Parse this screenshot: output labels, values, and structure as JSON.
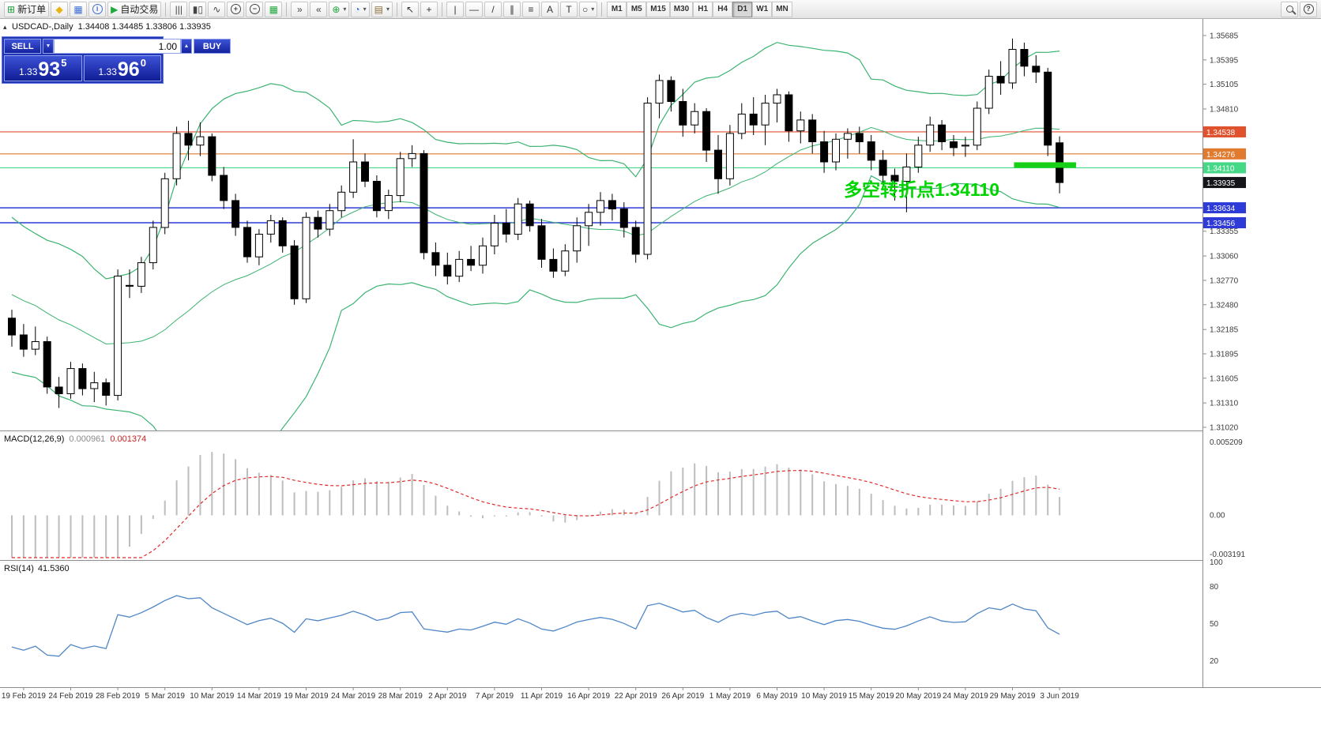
{
  "toolbar": {
    "items": [
      {
        "kind": "labeled-button",
        "name": "new-order",
        "glyph": "⊞",
        "glyph_color": "#1f9d3a",
        "label": "新订单"
      },
      {
        "kind": "glyph",
        "name": "symbols",
        "glyph": "◆",
        "color": "#e7b416"
      },
      {
        "kind": "glyph",
        "name": "market-watch",
        "glyph": "▦",
        "color": "#3f6fd1"
      },
      {
        "kind": "circle",
        "name": "info",
        "text": "i",
        "color": "#3f6fd1"
      },
      {
        "kind": "labeled-button",
        "name": "auto-trading",
        "glyph": "▶",
        "glyph_color": "#1fa83c",
        "label": "自动交易"
      },
      {
        "kind": "sep"
      },
      {
        "kind": "glyph",
        "name": "bar-chart",
        "glyph": "|||",
        "color": "#444444"
      },
      {
        "kind": "glyph",
        "name": "candlestick-chart",
        "glyph": "▮▯",
        "color": "#444444"
      },
      {
        "kind": "glyph",
        "name": "line-chart",
        "glyph": "∿",
        "color": "#444444"
      },
      {
        "kind": "circle",
        "name": "zoom-in",
        "text": "+",
        "color": "#444444"
      },
      {
        "kind": "circle",
        "name": "zoom-out",
        "text": "−",
        "color": "#444444"
      },
      {
        "kind": "glyph",
        "name": "tile-windows",
        "glyph": "▦",
        "color": "#1fa83c"
      },
      {
        "kind": "sep"
      },
      {
        "kind": "glyph",
        "name": "auto-scroll",
        "glyph": "»",
        "color": "#444444"
      },
      {
        "kind": "glyph",
        "name": "chart-shift",
        "glyph": "«",
        "color": "#444444"
      },
      {
        "kind": "dropdown",
        "name": "indicators",
        "glyph": "⊕",
        "color": "#1fa83c"
      },
      {
        "kind": "dropdown",
        "name": "periods",
        "glyph": "◔",
        "color": "#3f6fd1"
      },
      {
        "kind": "dropdown",
        "name": "templates",
        "glyph": "▤",
        "color": "#8a6d3b"
      },
      {
        "kind": "sep"
      },
      {
        "kind": "glyph",
        "name": "cursor",
        "glyph": "↖",
        "color": "#333333"
      },
      {
        "kind": "glyph",
        "name": "crosshair",
        "glyph": "+",
        "color": "#333333"
      },
      {
        "kind": "sep"
      },
      {
        "kind": "glyph",
        "name": "vertical-line",
        "glyph": "|",
        "color": "#333333"
      },
      {
        "kind": "glyph",
        "name": "horizontal-line",
        "glyph": "—",
        "color": "#333333"
      },
      {
        "kind": "glyph",
        "name": "trendline",
        "glyph": "/",
        "color": "#333333"
      },
      {
        "kind": "glyph",
        "name": "equidistant-channel",
        "glyph": "∥",
        "color": "#333333"
      },
      {
        "kind": "glyph",
        "name": "fibonacci",
        "glyph": "≡",
        "color": "#333333"
      },
      {
        "kind": "glyph",
        "name": "text",
        "glyph": "A",
        "color": "#333333"
      },
      {
        "kind": "glyph",
        "name": "text-label",
        "glyph": "T",
        "color": "#333333"
      },
      {
        "kind": "dropdown",
        "name": "shapes",
        "glyph": "○",
        "color": "#333333"
      },
      {
        "kind": "sep"
      },
      {
        "kind": "timeframes"
      }
    ],
    "right_items": [
      {
        "kind": "mag",
        "name": "search"
      },
      {
        "kind": "circle",
        "name": "help",
        "text": "?",
        "color": "#444444"
      }
    ],
    "timeframes": [
      "M1",
      "M5",
      "M15",
      "M30",
      "H1",
      "H4",
      "D1",
      "W1",
      "MN"
    ],
    "active_timeframe": "D1",
    "dropdown_caret": "▾"
  },
  "order_panel": {
    "sell_label": "SELL",
    "buy_label": "BUY",
    "volume": "1.00",
    "spin_up": "▲",
    "spin_down": "▼",
    "sell_price_small": "1.33",
    "sell_price_big": "93",
    "sell_price_sup": "5",
    "buy_price_small": "1.33",
    "buy_price_big": "96",
    "buy_price_sup": "0"
  },
  "chart": {
    "window_marker": "▴",
    "title": "USDCAD-,Daily",
    "ohlc_text": "1.34408 1.34485 1.33806 1.33935",
    "annotation": {
      "text": "多空转折点1.34110",
      "color": "#00d400"
    },
    "hlines": [
      {
        "price": 1.34538,
        "color": "#e0512d",
        "label": "1.34538"
      },
      {
        "price": 1.34276,
        "color": "#e07a2e",
        "label": "1.34276"
      },
      {
        "price": 1.3411,
        "color": "#45d887",
        "label": "1.34110"
      },
      {
        "price": 1.33634,
        "color": "#2e3bd7",
        "label": "1.33634"
      },
      {
        "price": 1.33456,
        "color": "#2e3bd7",
        "label": "1.33456"
      }
    ],
    "current_price": {
      "value": 1.33935,
      "label": "1.33935",
      "bg": "#15161a"
    },
    "highlight_bar": {
      "price": 1.3411,
      "from_index": 85.4,
      "to_index": 90.4,
      "color": "#17cf17"
    },
    "y_axis": {
      "min": 1.3102,
      "max": 1.35685,
      "labels": [
        "1.35685",
        "1.35395",
        "1.35105",
        "1.34810",
        "1.33355",
        "1.33060",
        "1.32770",
        "1.32480",
        "1.32185",
        "1.31895",
        "1.31605",
        "1.31310",
        "1.31020"
      ]
    }
  },
  "chart_data": {
    "type": "candlestick-ohlc",
    "symbol": "USDCAD",
    "timeframe": "Daily",
    "title": "USDCAD-,Daily 1.34408 1.34485 1.33806 1.33935",
    "ylim": [
      1.3102,
      1.35685
    ],
    "grid": false,
    "x_labels": [
      "19 Feb 2019",
      "24 Feb 2019",
      "28 Feb 2019",
      "5 Mar 2019",
      "10 Mar 2019",
      "14 Mar 2019",
      "19 Mar 2019",
      "24 Mar 2019",
      "28 Mar 2019",
      "2 Apr 2019",
      "7 Apr 2019",
      "11 Apr 2019",
      "16 Apr 2019",
      "22 Apr 2019",
      "26 Apr 2019",
      "1 May 2019",
      "6 May 2019",
      "10 May 2019",
      "15 May 2019",
      "20 May 2019",
      "24 May 2019",
      "29 May 2019",
      "3 Jun 2019"
    ],
    "label_start_index": 1,
    "label_every": 4,
    "prehistory_closes": [
      1.3372,
      1.336,
      1.3345,
      1.3355,
      1.3368,
      1.3375,
      1.3362,
      1.334,
      1.3318,
      1.333,
      1.3305,
      1.3288,
      1.3298,
      1.331,
      1.3292,
      1.327,
      1.3252,
      1.326,
      1.324,
      1.3228,
      1.3215,
      1.3225,
      1.3205,
      1.3192,
      1.32,
      1.322
    ],
    "ohlc": [
      [
        1.3232,
        1.3242,
        1.3198,
        1.3212
      ],
      [
        1.3212,
        1.3225,
        1.3186,
        1.3195
      ],
      [
        1.3195,
        1.3222,
        1.3188,
        1.3204
      ],
      [
        1.3204,
        1.321,
        1.3142,
        1.315
      ],
      [
        1.315,
        1.3162,
        1.3125,
        1.3142
      ],
      [
        1.3142,
        1.318,
        1.3136,
        1.3172
      ],
      [
        1.3172,
        1.3178,
        1.314,
        1.3148
      ],
      [
        1.3148,
        1.3168,
        1.3132,
        1.3155
      ],
      [
        1.3155,
        1.316,
        1.3128,
        1.314
      ],
      [
        1.314,
        1.329,
        1.3134,
        1.3282
      ],
      [
        1.3271,
        1.329,
        1.3256,
        1.327
      ],
      [
        1.327,
        1.3305,
        1.3262,
        1.3298
      ],
      [
        1.3298,
        1.3348,
        1.329,
        1.334
      ],
      [
        1.334,
        1.3405,
        1.3332,
        1.3398
      ],
      [
        1.3398,
        1.346,
        1.339,
        1.3452
      ],
      [
        1.3452,
        1.3467,
        1.342,
        1.3438
      ],
      [
        1.3438,
        1.3465,
        1.3425,
        1.3448
      ],
      [
        1.3448,
        1.3452,
        1.3395,
        1.3402
      ],
      [
        1.3402,
        1.3412,
        1.3362,
        1.3372
      ],
      [
        1.3372,
        1.338,
        1.333,
        1.334
      ],
      [
        1.334,
        1.3348,
        1.3298,
        1.3305
      ],
      [
        1.3305,
        1.3338,
        1.3295,
        1.3332
      ],
      [
        1.3332,
        1.3355,
        1.3322,
        1.3348
      ],
      [
        1.3348,
        1.3352,
        1.331,
        1.3318
      ],
      [
        1.3318,
        1.3325,
        1.3248,
        1.3255
      ],
      [
        1.3255,
        1.3358,
        1.325,
        1.3352
      ],
      [
        1.3352,
        1.336,
        1.3328,
        1.3338
      ],
      [
        1.3338,
        1.3368,
        1.333,
        1.336
      ],
      [
        1.336,
        1.339,
        1.3352,
        1.3382
      ],
      [
        1.3382,
        1.3445,
        1.3375,
        1.3418
      ],
      [
        1.3418,
        1.3428,
        1.3388,
        1.3395
      ],
      [
        1.3395,
        1.3402,
        1.3352,
        1.336
      ],
      [
        1.336,
        1.3385,
        1.335,
        1.3378
      ],
      [
        1.3378,
        1.343,
        1.337,
        1.3422
      ],
      [
        1.3422,
        1.3438,
        1.3412,
        1.3428
      ],
      [
        1.3428,
        1.3432,
        1.3302,
        1.331
      ],
      [
        1.331,
        1.3322,
        1.3282,
        1.3295
      ],
      [
        1.3295,
        1.331,
        1.3272,
        1.3282
      ],
      [
        1.3282,
        1.3312,
        1.3275,
        1.3302
      ],
      [
        1.3302,
        1.3318,
        1.3288,
        1.3295
      ],
      [
        1.3295,
        1.3328,
        1.3285,
        1.3318
      ],
      [
        1.3318,
        1.3355,
        1.3308,
        1.3345
      ],
      [
        1.3345,
        1.3362,
        1.3322,
        1.3332
      ],
      [
        1.3332,
        1.3375,
        1.3325,
        1.3368
      ],
      [
        1.3368,
        1.3372,
        1.3335,
        1.3342
      ],
      [
        1.3342,
        1.335,
        1.3292,
        1.3302
      ],
      [
        1.3302,
        1.3315,
        1.328,
        1.3288
      ],
      [
        1.3288,
        1.332,
        1.3282,
        1.3312
      ],
      [
        1.3312,
        1.3352,
        1.3298,
        1.3342
      ],
      [
        1.3342,
        1.3368,
        1.3318,
        1.3358
      ],
      [
        1.3358,
        1.3382,
        1.3342,
        1.3372
      ],
      [
        1.3372,
        1.338,
        1.3348,
        1.3362
      ],
      [
        1.3362,
        1.337,
        1.3328,
        1.334
      ],
      [
        1.334,
        1.3348,
        1.3298,
        1.3308
      ],
      [
        1.3308,
        1.3495,
        1.3302,
        1.3488
      ],
      [
        1.3488,
        1.3522,
        1.347,
        1.3515
      ],
      [
        1.3515,
        1.352,
        1.3478,
        1.349
      ],
      [
        1.349,
        1.3505,
        1.3448,
        1.3462
      ],
      [
        1.3462,
        1.3488,
        1.3452,
        1.3478
      ],
      [
        1.3478,
        1.3482,
        1.3418,
        1.3432
      ],
      [
        1.3432,
        1.345,
        1.338,
        1.3398
      ],
      [
        1.3398,
        1.3462,
        1.339,
        1.3452
      ],
      [
        1.3452,
        1.3488,
        1.3445,
        1.3475
      ],
      [
        1.3475,
        1.3495,
        1.345,
        1.3462
      ],
      [
        1.3462,
        1.3498,
        1.3438,
        1.3488
      ],
      [
        1.3488,
        1.3505,
        1.3465,
        1.3498
      ],
      [
        1.3498,
        1.3502,
        1.3442,
        1.3455
      ],
      [
        1.3455,
        1.3478,
        1.344,
        1.3468
      ],
      [
        1.3468,
        1.3475,
        1.3428,
        1.3442
      ],
      [
        1.3442,
        1.3455,
        1.3405,
        1.3418
      ],
      [
        1.3418,
        1.3452,
        1.3408,
        1.3445
      ],
      [
        1.3445,
        1.3458,
        1.3422,
        1.3452
      ],
      [
        1.3452,
        1.346,
        1.3428,
        1.3442
      ],
      [
        1.3442,
        1.345,
        1.3408,
        1.342
      ],
      [
        1.342,
        1.3432,
        1.3388,
        1.3402
      ],
      [
        1.3402,
        1.341,
        1.3372,
        1.3395
      ],
      [
        1.3395,
        1.3428,
        1.3358,
        1.3412
      ],
      [
        1.3412,
        1.3448,
        1.3405,
        1.3438
      ],
      [
        1.3438,
        1.3472,
        1.343,
        1.3462
      ],
      [
        1.3462,
        1.3468,
        1.3432,
        1.3442
      ],
      [
        1.3442,
        1.345,
        1.3425,
        1.3435
      ],
      [
        1.3437,
        1.3448,
        1.3424,
        1.3438
      ],
      [
        1.3438,
        1.349,
        1.3432,
        1.3482
      ],
      [
        1.3482,
        1.3528,
        1.3475,
        1.352
      ],
      [
        1.352,
        1.3538,
        1.3498,
        1.3512
      ],
      [
        1.3512,
        1.3565,
        1.3505,
        1.3552
      ],
      [
        1.3552,
        1.356,
        1.352,
        1.3532
      ],
      [
        1.3532,
        1.3545,
        1.3512,
        1.3525
      ],
      [
        1.3525,
        1.353,
        1.3425,
        1.3438
      ],
      [
        1.34408,
        1.34485,
        1.33806,
        1.33935
      ]
    ],
    "indicators": {
      "bollinger": {
        "period": 20,
        "deviation": 2,
        "color": "#3cb371"
      },
      "macd": {
        "label": "MACD(12,26,9)",
        "fast": 12,
        "slow": 26,
        "signal": 9,
        "value_main": "0.000961",
        "value_signal": "0.001374",
        "histogram_color": "#bdbdbd",
        "signal_color": "#e02b2b",
        "axis_labels": [
          "0.005209",
          "0.00",
          "-0.003191"
        ],
        "range": [
          -0.003,
          0.0054
        ]
      },
      "rsi": {
        "label": "RSI(14)",
        "period": 14,
        "value": "41.5360",
        "color": "#4f86c6",
        "axis_labels": [
          "100",
          "80",
          "50",
          "20"
        ],
        "range": [
          0,
          100
        ]
      }
    }
  }
}
